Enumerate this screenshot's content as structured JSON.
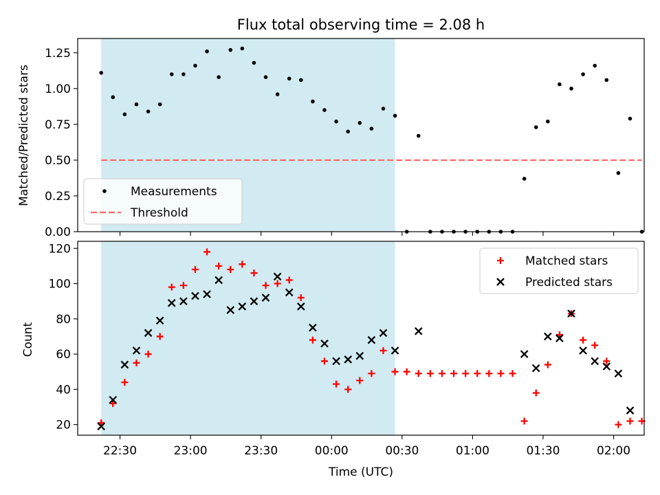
{
  "chart_data": [
    {
      "type": "scatter",
      "title": "Flux total observing time = 2.08 h",
      "xlabel": "",
      "ylabel": "Matched/Predicted stars",
      "xlim": [
        -48,
        193
      ],
      "ylim": [
        0,
        1.35
      ],
      "y_ticks": [
        0.0,
        0.25,
        0.5,
        0.75,
        1.0,
        1.25
      ],
      "y_tick_labels": [
        "0.00",
        "0.25",
        "0.50",
        "0.75",
        "1.00",
        "1.25"
      ],
      "x_ticks": [
        -30,
        0,
        30,
        60,
        90,
        120,
        150,
        180
      ],
      "x_ticks_labeled": false,
      "shaded_region": {
        "x_start": -38,
        "x_end": 87,
        "color": "#add8e6"
      },
      "legend_position": "lower-left",
      "series": [
        {
          "name": "Measurements",
          "marker": "dot",
          "color": "#000000",
          "points": [
            [
              -38,
              1.11
            ],
            [
              -33,
              0.94
            ],
            [
              -28,
              0.82
            ],
            [
              -23,
              0.89
            ],
            [
              -18,
              0.84
            ],
            [
              -13,
              0.89
            ],
            [
              -8,
              1.1
            ],
            [
              -3,
              1.1
            ],
            [
              2,
              1.16
            ],
            [
              7,
              1.26
            ],
            [
              12,
              1.08
            ],
            [
              17,
              1.27
            ],
            [
              22,
              1.28
            ],
            [
              27,
              1.18
            ],
            [
              32,
              1.08
            ],
            [
              37,
              0.96
            ],
            [
              42,
              1.07
            ],
            [
              47,
              1.06
            ],
            [
              52,
              0.91
            ],
            [
              57,
              0.85
            ],
            [
              62,
              0.77
            ],
            [
              67,
              0.7
            ],
            [
              72,
              0.76
            ],
            [
              77,
              0.72
            ],
            [
              82,
              0.86
            ],
            [
              87,
              0.81
            ],
            [
              92,
              0.0
            ],
            [
              97,
              0.67
            ],
            [
              102,
              0.0
            ],
            [
              107,
              0.0
            ],
            [
              112,
              0.0
            ],
            [
              117,
              0.0
            ],
            [
              122,
              0.0
            ],
            [
              127,
              0.0
            ],
            [
              132,
              0.0
            ],
            [
              137,
              0.0
            ],
            [
              142,
              0.37
            ],
            [
              147,
              0.73
            ],
            [
              152,
              0.77
            ],
            [
              157,
              1.03
            ],
            [
              162,
              1.0
            ],
            [
              167,
              1.1
            ],
            [
              172,
              1.16
            ],
            [
              177,
              1.06
            ],
            [
              182,
              0.41
            ],
            [
              187,
              0.79
            ],
            [
              192,
              0.0
            ]
          ]
        },
        {
          "name": "Threshold",
          "line": "dashed",
          "color": "#ff6666",
          "x": [
            -38,
            192
          ],
          "y": [
            0.5,
            0.5
          ]
        }
      ]
    },
    {
      "type": "scatter",
      "title": "",
      "xlabel": "Time (UTC)",
      "ylabel": "Count",
      "xlim": [
        -48,
        193
      ],
      "ylim": [
        14,
        124
      ],
      "y_ticks": [
        20,
        40,
        60,
        80,
        100,
        120
      ],
      "y_tick_labels": [
        "20",
        "40",
        "60",
        "80",
        "100",
        "120"
      ],
      "x_ticks": [
        -30,
        0,
        30,
        60,
        90,
        120,
        150,
        180
      ],
      "x_tick_labels": [
        "22:30",
        "23:00",
        "23:30",
        "00:00",
        "00:30",
        "01:00",
        "01:30",
        "02:00"
      ],
      "shaded_region": {
        "x_start": -38,
        "x_end": 87,
        "color": "#add8e6"
      },
      "legend_position": "upper-right",
      "series": [
        {
          "name": "Matched stars",
          "marker": "plus",
          "color": "#ff0000",
          "points": [
            [
              -38,
              21
            ],
            [
              -33,
              32
            ],
            [
              -28,
              44
            ],
            [
              -23,
              55
            ],
            [
              -18,
              60
            ],
            [
              -13,
              70
            ],
            [
              -8,
              98
            ],
            [
              -3,
              99
            ],
            [
              2,
              108
            ],
            [
              7,
              118
            ],
            [
              12,
              110
            ],
            [
              17,
              108
            ],
            [
              22,
              111
            ],
            [
              27,
              106
            ],
            [
              32,
              99
            ],
            [
              37,
              100
            ],
            [
              42,
              102
            ],
            [
              47,
              92
            ],
            [
              52,
              68
            ],
            [
              57,
              56
            ],
            [
              62,
              43
            ],
            [
              67,
              40
            ],
            [
              72,
              45
            ],
            [
              77,
              49
            ],
            [
              82,
              62
            ],
            [
              87,
              50
            ],
            [
              92,
              50
            ],
            [
              97,
              49
            ],
            [
              102,
              49
            ],
            [
              107,
              49
            ],
            [
              112,
              49
            ],
            [
              117,
              49
            ],
            [
              122,
              49
            ],
            [
              127,
              49
            ],
            [
              132,
              49
            ],
            [
              137,
              49
            ],
            [
              142,
              22
            ],
            [
              147,
              38
            ],
            [
              152,
              54
            ],
            [
              157,
              71
            ],
            [
              162,
              83
            ],
            [
              167,
              68
            ],
            [
              172,
              65
            ],
            [
              177,
              56
            ],
            [
              182,
              20
            ],
            [
              187,
              22
            ],
            [
              192,
              22
            ]
          ]
        },
        {
          "name": "Predicted stars",
          "marker": "x",
          "color": "#000000",
          "points": [
            [
              -38,
              19
            ],
            [
              -33,
              34
            ],
            [
              -28,
              54
            ],
            [
              -23,
              62
            ],
            [
              -18,
              72
            ],
            [
              -13,
              79
            ],
            [
              -8,
              89
            ],
            [
              -3,
              90
            ],
            [
              2,
              93
            ],
            [
              7,
              94
            ],
            [
              12,
              102
            ],
            [
              17,
              85
            ],
            [
              22,
              87
            ],
            [
              27,
              90
            ],
            [
              32,
              92
            ],
            [
              37,
              104
            ],
            [
              42,
              95
            ],
            [
              47,
              87
            ],
            [
              52,
              75
            ],
            [
              57,
              66
            ],
            [
              62,
              56
            ],
            [
              67,
              57
            ],
            [
              72,
              59
            ],
            [
              77,
              68
            ],
            [
              82,
              72
            ],
            [
              87,
              62
            ],
            [
              97,
              73
            ],
            [
              142,
              60
            ],
            [
              147,
              52
            ],
            [
              152,
              70
            ],
            [
              157,
              69
            ],
            [
              162,
              83
            ],
            [
              167,
              62
            ],
            [
              172,
              56
            ],
            [
              177,
              53
            ],
            [
              182,
              49
            ],
            [
              187,
              28
            ]
          ]
        }
      ]
    }
  ]
}
